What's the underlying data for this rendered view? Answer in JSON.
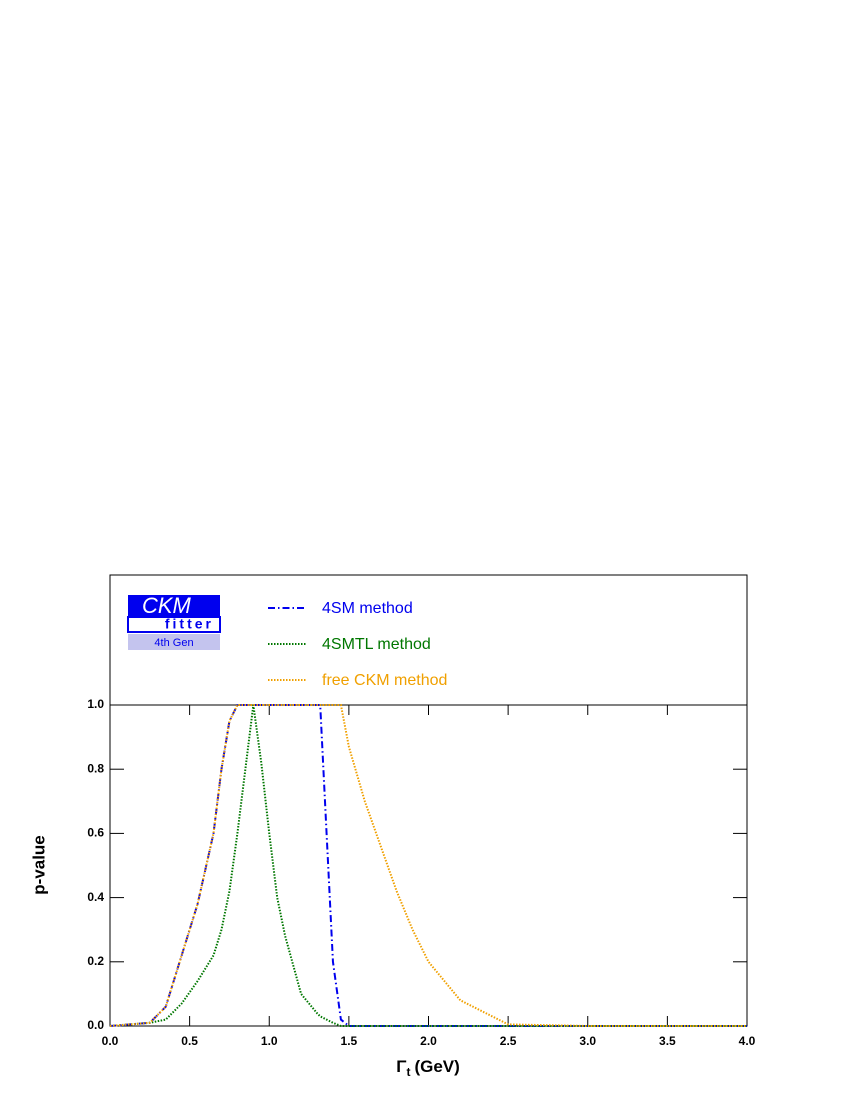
{
  "chart_data": {
    "type": "line",
    "logo": {
      "title": "CKM",
      "subtitle": "fitter",
      "tag": "4th Gen"
    },
    "ylabel": "p-value",
    "xlabel_symbol": "Γ",
    "xlabel_subscript": "t",
    "xlabel_unit": "(GeV)",
    "x": [
      0,
      0.25,
      0.35,
      0.45,
      0.55,
      0.65,
      0.7,
      0.75,
      0.8,
      0.85,
      0.9,
      0.95,
      1.0,
      1.05,
      1.1,
      1.2,
      1.3,
      1.32,
      1.36,
      1.4,
      1.45,
      1.5,
      1.6,
      1.7,
      1.8,
      1.9,
      2.0,
      2.2,
      2.5,
      3.0,
      4.0
    ],
    "series": [
      {
        "name": "4SM method",
        "color": "#0000ee",
        "style": "dashdot",
        "values": [
          0,
          0.01,
          0.06,
          0.22,
          0.38,
          0.6,
          0.8,
          0.95,
          1,
          1,
          1,
          1,
          1,
          1,
          1,
          1,
          1,
          1,
          0.6,
          0.2,
          0.02,
          0,
          0,
          0,
          0,
          0,
          0,
          0,
          0,
          0,
          0
        ]
      },
      {
        "name": "4SMTL method",
        "color": "#007700",
        "style": "dotted",
        "values": [
          0,
          0.01,
          0.02,
          0.07,
          0.14,
          0.22,
          0.3,
          0.42,
          0.6,
          0.8,
          1,
          0.82,
          0.6,
          0.4,
          0.28,
          0.1,
          0.04,
          0.03,
          0.02,
          0.01,
          0,
          0,
          0,
          0,
          0,
          0,
          0,
          0,
          0,
          0,
          0
        ]
      },
      {
        "name": "free CKM method",
        "color": "#f0a000",
        "style": "dotted",
        "values": [
          0,
          0.01,
          0.06,
          0.22,
          0.38,
          0.6,
          0.8,
          0.95,
          1,
          1,
          1,
          1,
          1,
          1,
          1,
          1,
          1,
          1,
          1,
          1,
          1,
          0.87,
          0.7,
          0.56,
          0.42,
          0.3,
          0.2,
          0.08,
          0.005,
          0,
          0
        ]
      }
    ],
    "xlim": [
      0,
      4
    ],
    "ylim": [
      0,
      1
    ],
    "xticks": [
      {
        "value": 0,
        "label": "0.0"
      },
      {
        "value": 0.5,
        "label": "0.5"
      },
      {
        "value": 1,
        "label": "1.0"
      },
      {
        "value": 1.5,
        "label": "1.5"
      },
      {
        "value": 2,
        "label": "2.0"
      },
      {
        "value": 2.5,
        "label": "2.5"
      },
      {
        "value": 3,
        "label": "3.0"
      },
      {
        "value": 3.5,
        "label": "3.5"
      },
      {
        "value": 4,
        "label": "4.0"
      }
    ],
    "yticks": [
      {
        "value": 0,
        "label": "0.0"
      },
      {
        "value": 0.2,
        "label": "0.2"
      },
      {
        "value": 0.4,
        "label": "0.4"
      },
      {
        "value": 0.6,
        "label": "0.6"
      },
      {
        "value": 0.8,
        "label": "0.8"
      },
      {
        "value": 1,
        "label": "1.0"
      }
    ]
  }
}
